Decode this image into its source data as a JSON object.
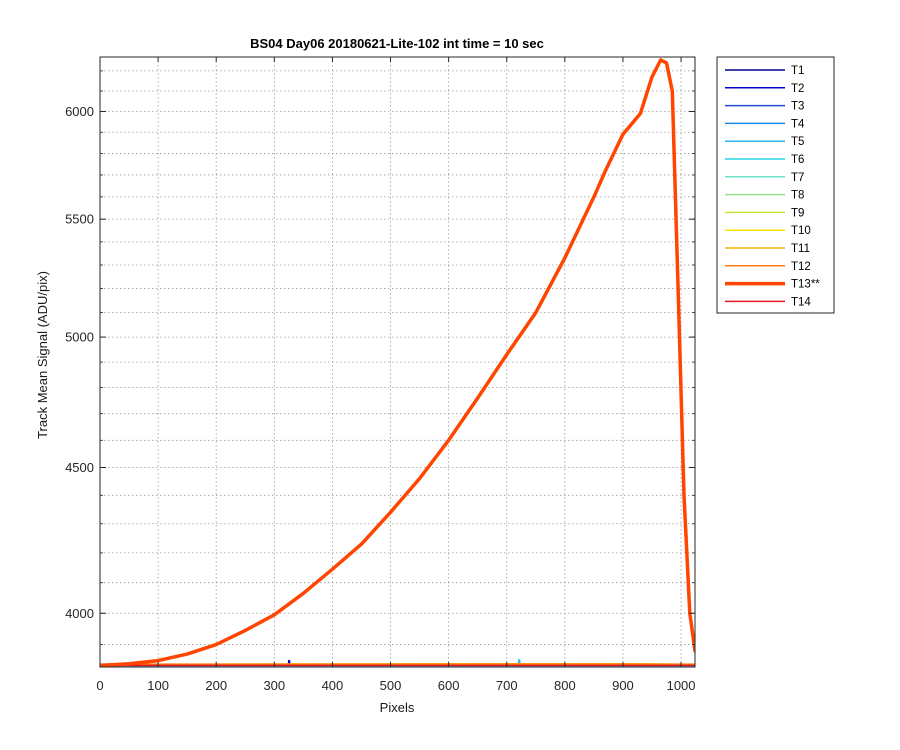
{
  "chart_data": {
    "type": "line",
    "title": "BS04 Day06 20180621-Lite-102 int time = 10 sec",
    "xlabel": "Pixels",
    "ylabel": "Track Mean Signal (ADU/pix)",
    "xlim": [
      0,
      1024
    ],
    "ylim": [
      3830,
      6270
    ],
    "y_scale": "log",
    "grid": "major and minor, dotted",
    "legend_position": "outside right, top",
    "xticks": [
      {
        "value": 0,
        "label": "0"
      },
      {
        "value": 100,
        "label": "100"
      },
      {
        "value": 200,
        "label": "200"
      },
      {
        "value": 300,
        "label": "300"
      },
      {
        "value": 400,
        "label": "400"
      },
      {
        "value": 500,
        "label": "500"
      },
      {
        "value": 600,
        "label": "600"
      },
      {
        "value": 700,
        "label": "700"
      },
      {
        "value": 800,
        "label": "800"
      },
      {
        "value": 900,
        "label": "900"
      },
      {
        "value": 1000,
        "label": "1000"
      }
    ],
    "yticks": [
      {
        "value": 4000,
        "label": "4000"
      },
      {
        "value": 4500,
        "label": "4500"
      },
      {
        "value": 5000,
        "label": "5000"
      },
      {
        "value": 5500,
        "label": "5500"
      },
      {
        "value": 6000,
        "label": "6000"
      }
    ],
    "series": [
      {
        "name": "T1",
        "color": "#00008b",
        "x": [
          0,
          1024
        ],
        "y": [
          3835,
          3835
        ]
      },
      {
        "name": "T2",
        "color": "#0000cd",
        "x": [
          0,
          324,
          325,
          326,
          327,
          1024
        ],
        "y": [
          3835,
          3835,
          3850,
          3850,
          3835,
          3835
        ]
      },
      {
        "name": "T3",
        "color": "#1f4fd0",
        "x": [
          0,
          1024
        ],
        "y": [
          3836,
          3836
        ]
      },
      {
        "name": "T4",
        "color": "#1e88e5",
        "x": [
          0,
          1024
        ],
        "y": [
          3836,
          3836
        ]
      },
      {
        "name": "T5",
        "color": "#29b6f6",
        "x": [
          0,
          720,
          721,
          722,
          723,
          1024
        ],
        "y": [
          3837,
          3837,
          3852,
          3852,
          3837,
          3837
        ]
      },
      {
        "name": "T6",
        "color": "#26d7e6",
        "x": [
          0,
          1024
        ],
        "y": [
          3837,
          3837
        ]
      },
      {
        "name": "T7",
        "color": "#6fe3c9",
        "x": [
          0,
          1024
        ],
        "y": [
          3837,
          3837
        ]
      },
      {
        "name": "T8",
        "color": "#9ae08a",
        "x": [
          0,
          1024
        ],
        "y": [
          3837,
          3837
        ]
      },
      {
        "name": "T9",
        "color": "#c8e63a",
        "x": [
          0,
          1024
        ],
        "y": [
          3838,
          3838
        ]
      },
      {
        "name": "T10",
        "color": "#ffe200",
        "x": [
          0,
          700,
          900,
          1024
        ],
        "y": [
          3838,
          3840,
          3840,
          3838
        ]
      },
      {
        "name": "T11",
        "color": "#f4b400",
        "x": [
          0,
          700,
          900,
          1024
        ],
        "y": [
          3838,
          3840,
          3840,
          3838
        ]
      },
      {
        "name": "T12",
        "color": "#ff7f0e",
        "x": [
          0,
          1024
        ],
        "y": [
          3839,
          3839
        ]
      },
      {
        "name": "T13**",
        "color": "#ff4500",
        "highlight": true,
        "x": [
          0,
          50,
          100,
          150,
          200,
          250,
          300,
          350,
          400,
          450,
          500,
          550,
          600,
          650,
          700,
          750,
          800,
          850,
          870,
          900,
          930,
          950,
          965,
          975,
          985,
          995,
          1005,
          1015,
          1024
        ],
        "y": [
          3835,
          3840,
          3850,
          3870,
          3900,
          3945,
          3995,
          4065,
          4145,
          4230,
          4340,
          4460,
          4600,
          4760,
          4930,
          5100,
          5330,
          5600,
          5720,
          5890,
          5990,
          6170,
          6255,
          6240,
          6100,
          5200,
          4400,
          4000,
          3880
        ]
      },
      {
        "name": "T14",
        "color": "#e41a1c",
        "x": [
          0,
          1024
        ],
        "y": [
          3835,
          3835
        ]
      }
    ]
  }
}
